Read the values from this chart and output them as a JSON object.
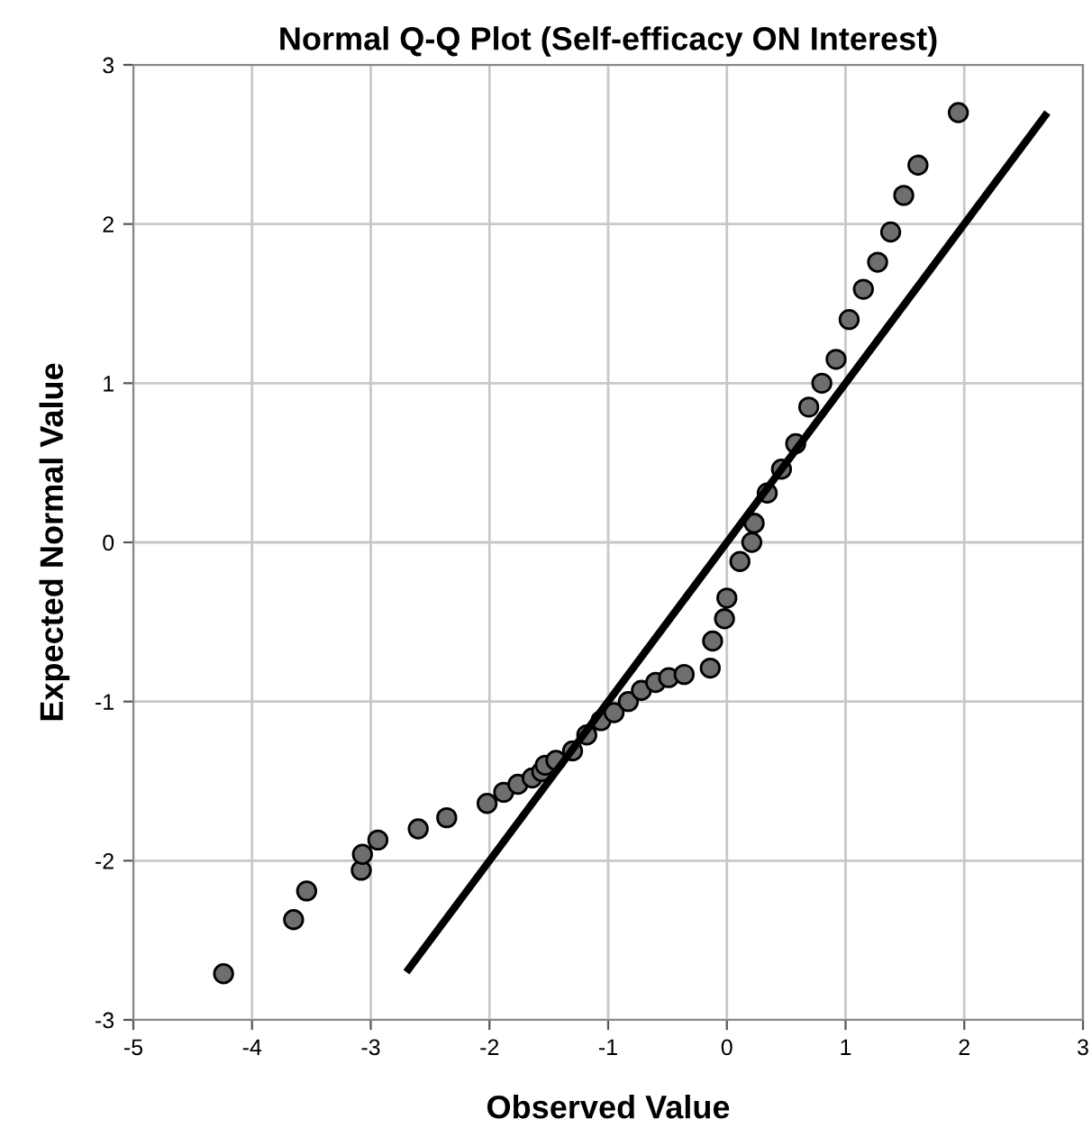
{
  "chart_data": {
    "type": "scatter",
    "title": "Normal Q-Q Plot (Self-efficacy ON Interest)",
    "xlabel": "Observed Value",
    "ylabel": "Expected Normal Value",
    "xlim": [
      -5,
      3
    ],
    "ylim": [
      -3,
      3
    ],
    "xticks": [
      -5,
      -4,
      -3,
      -2,
      -1,
      0,
      1,
      2,
      3
    ],
    "yticks": [
      -3,
      -2,
      -1,
      0,
      1,
      2,
      3
    ],
    "grid": true,
    "series": [
      {
        "marker": "circle",
        "color": "#6e6e6e",
        "x": [
          -4.24,
          -3.65,
          -3.54,
          -3.08,
          -3.07,
          -2.94,
          -2.6,
          -2.36,
          -2.02,
          -1.88,
          -1.76,
          -1.64,
          -1.56,
          -1.53,
          -1.44,
          -1.3,
          -1.18,
          -1.06,
          -0.95,
          -0.83,
          -0.72,
          -0.6,
          -0.49,
          -0.36,
          -0.14,
          -0.12,
          -0.02,
          0.0,
          0.11,
          0.21,
          0.23,
          0.34,
          0.46,
          0.58,
          0.69,
          0.8,
          0.92,
          1.03,
          1.15,
          1.27,
          1.38,
          1.49,
          1.61,
          1.95
        ],
        "values": [
          -2.71,
          -2.37,
          -2.19,
          -2.06,
          -1.96,
          -1.87,
          -1.8,
          -1.73,
          -1.64,
          -1.57,
          -1.52,
          -1.48,
          -1.44,
          -1.4,
          -1.37,
          -1.31,
          -1.21,
          -1.12,
          -1.07,
          -1.0,
          -0.93,
          -0.88,
          -0.85,
          -0.83,
          -0.79,
          -0.62,
          -0.48,
          -0.35,
          -0.12,
          0.0,
          0.12,
          0.31,
          0.46,
          0.62,
          0.85,
          1.0,
          1.15,
          1.4,
          1.59,
          1.76,
          1.95,
          2.18,
          2.37,
          2.7
        ]
      },
      {
        "type": "line",
        "marker": "none",
        "color": "#000000",
        "x": [
          -2.7,
          2.7
        ],
        "values": [
          -2.7,
          2.7
        ]
      }
    ]
  }
}
